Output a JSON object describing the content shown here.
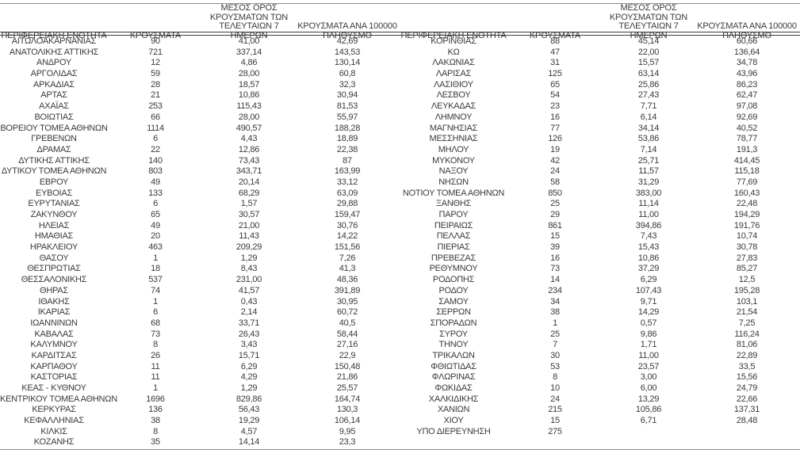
{
  "colors": {
    "text": "#3a3a3a",
    "rule": "#8c8c8c",
    "header_rule": "#3f3f3f",
    "background": "#ffffff"
  },
  "columns": [
    "ΠΕΡΙΦΕΡΕΙΑΚΗ ΕΝΟΤΗΤΑ",
    "ΚΡΟΥΣΜΑΤΑ",
    "ΜΕΣΟΣ ΟΡΟΣ\nΚΡΟΥΣΜΑΤΩΝ ΤΩΝ\nΤΕΛΕΥΤΑΙΩΝ 7 ΗΜΕΡΩΝ",
    "ΚΡΟΥΣΜΑΤΑ ΑΝΑ 100000\nΠΛΗΘΥΣΜΟ"
  ],
  "left_table": {
    "rows": [
      [
        "ΑΙΤΩΛΟΑΚΑΡΝΑΝΙΑΣ",
        "90",
        "41,00",
        "42,69"
      ],
      [
        "ΑΝΑΤΟΛΙΚΗΣ ΑΤΤΙΚΗΣ",
        "721",
        "337,14",
        "143,53"
      ],
      [
        "ΑΝΔΡΟΥ",
        "12",
        "4,86",
        "130,14"
      ],
      [
        "ΑΡΓΟΛΙΔΑΣ",
        "59",
        "28,00",
        "60,8"
      ],
      [
        "ΑΡΚΑΔΙΑΣ",
        "28",
        "18,57",
        "32,3"
      ],
      [
        "ΑΡΤΑΣ",
        "21",
        "10,86",
        "30,94"
      ],
      [
        "ΑΧΑΪΑΣ",
        "253",
        "115,43",
        "81,53"
      ],
      [
        "ΒΟΙΩΤΙΑΣ",
        "66",
        "28,00",
        "55,97"
      ],
      [
        "ΒΟΡΕΙΟΥ ΤΟΜΕΑ ΑΘΗΝΩΝ",
        "1114",
        "490,57",
        "188,28"
      ],
      [
        "ΓΡΕΒΕΝΩΝ",
        "6",
        "4,43",
        "18,89"
      ],
      [
        "ΔΡΑΜΑΣ",
        "22",
        "12,86",
        "22,38"
      ],
      [
        "ΔΥΤΙΚΗΣ ΑΤΤΙΚΗΣ",
        "140",
        "73,43",
        "87"
      ],
      [
        "ΔΥΤΙΚΟΥ ΤΟΜΕΑ ΑΘΗΝΩΝ",
        "803",
        "343,71",
        "163,99"
      ],
      [
        "ΕΒΡΟΥ",
        "49",
        "20,14",
        "33,12"
      ],
      [
        "ΕΥΒΟΙΑΣ",
        "133",
        "68,29",
        "63,09"
      ],
      [
        "ΕΥΡΥΤΑΝΙΑΣ",
        "6",
        "1,57",
        "29,88"
      ],
      [
        "ΖΑΚΥΝΘΟΥ",
        "65",
        "30,57",
        "159,47"
      ],
      [
        "ΗΛΕΙΑΣ",
        "49",
        "21,00",
        "30,76"
      ],
      [
        "ΗΜΑΘΙΑΣ",
        "20",
        "11,43",
        "14,22"
      ],
      [
        "ΗΡΑΚΛΕΙΟΥ",
        "463",
        "209,29",
        "151,56"
      ],
      [
        "ΘΑΣΟΥ",
        "1",
        "1,29",
        "7,26"
      ],
      [
        "ΘΕΣΠΡΩΤΙΑΣ",
        "18",
        "8,43",
        "41,3"
      ],
      [
        "ΘΕΣΣΑΛΟΝΙΚΗΣ",
        "537",
        "231,00",
        "48,36"
      ],
      [
        "ΘΗΡΑΣ",
        "74",
        "41,57",
        "391,89"
      ],
      [
        "ΙΘΑΚΗΣ",
        "1",
        "0,43",
        "30,95"
      ],
      [
        "ΙΚΑΡΙΑΣ",
        "6",
        "2,14",
        "60,72"
      ],
      [
        "ΙΩΑΝΝΙΝΩΝ",
        "68",
        "33,71",
        "40,5"
      ],
      [
        "ΚΑΒΑΛΑΣ",
        "73",
        "26,43",
        "58,44"
      ],
      [
        "ΚΑΛΥΜΝΟΥ",
        "8",
        "3,43",
        "27,16"
      ],
      [
        "ΚΑΡΔΙΤΣΑΣ",
        "26",
        "15,71",
        "22,9"
      ],
      [
        "ΚΑΡΠΑΘΟΥ",
        "11",
        "6,29",
        "150,48"
      ],
      [
        "ΚΑΣΤΟΡΙΑΣ",
        "11",
        "4,29",
        "21,86"
      ],
      [
        "ΚΕΑΣ - ΚΥΘΝΟΥ",
        "1",
        "1,29",
        "25,57"
      ],
      [
        "ΚΕΝΤΡΙΚΟΥ ΤΟΜΕΑ ΑΘΗΝΩΝ",
        "1696",
        "829,86",
        "164,74"
      ],
      [
        "ΚΕΡΚΥΡΑΣ",
        "136",
        "56,43",
        "130,3"
      ],
      [
        "ΚΕΦΑΛΛΗΝΙΑΣ",
        "38",
        "19,29",
        "106,14"
      ],
      [
        "ΚΙΛΚΙΣ",
        "8",
        "4,57",
        "9,95"
      ],
      [
        "ΚΟΖΑΝΗΣ",
        "35",
        "14,14",
        "23,3"
      ]
    ]
  },
  "right_table": {
    "rows": [
      [
        "ΚΟΡΙΝΘΙΑΣ",
        "88",
        "45,14",
        "60,66"
      ],
      [
        "ΚΩ",
        "47",
        "22,00",
        "136,64"
      ],
      [
        "ΛΑΚΩΝΙΑΣ",
        "31",
        "15,57",
        "34,78"
      ],
      [
        "ΛΑΡΙΣΑΣ",
        "125",
        "63,14",
        "43,96"
      ],
      [
        "ΛΑΣΙΘΙΟΥ",
        "65",
        "25,86",
        "86,23"
      ],
      [
        "ΛΕΣΒΟΥ",
        "54",
        "27,43",
        "62,47"
      ],
      [
        "ΛΕΥΚΑΔΑΣ",
        "23",
        "7,71",
        "97,08"
      ],
      [
        "ΛΗΜΝΟΥ",
        "16",
        "6,14",
        "92,69"
      ],
      [
        "ΜΑΓΝΗΣΙΑΣ",
        "77",
        "34,14",
        "40,52"
      ],
      [
        "ΜΕΣΣΗΝΙΑΣ",
        "126",
        "53,86",
        "78,77"
      ],
      [
        "ΜΗΛΟΥ",
        "19",
        "7,14",
        "191,3"
      ],
      [
        "ΜΥΚΟΝΟΥ",
        "42",
        "25,71",
        "414,45"
      ],
      [
        "ΝΑΞΟΥ",
        "24",
        "11,57",
        "115,18"
      ],
      [
        "ΝΗΣΩΝ",
        "58",
        "31,29",
        "77,69"
      ],
      [
        "ΝΟΤΙΟΥ ΤΟΜΕΑ ΑΘΗΝΩΝ",
        "850",
        "383,00",
        "160,43"
      ],
      [
        "ΞΑΝΘΗΣ",
        "25",
        "11,14",
        "22,48"
      ],
      [
        "ΠΑΡΟΥ",
        "29",
        "11,00",
        "194,29"
      ],
      [
        "ΠΕΙΡΑΙΩΣ",
        "861",
        "394,86",
        "191,76"
      ],
      [
        "ΠΕΛΛΑΣ",
        "15",
        "7,43",
        "10,74"
      ],
      [
        "ΠΙΕΡΙΑΣ",
        "39",
        "15,43",
        "30,78"
      ],
      [
        "ΠΡΕΒΕΖΑΣ",
        "16",
        "10,86",
        "27,83"
      ],
      [
        "ΡΕΘΥΜΝΟΥ",
        "73",
        "37,29",
        "85,27"
      ],
      [
        "ΡΟΔΟΠΗΣ",
        "14",
        "6,29",
        "12,5"
      ],
      [
        "ΡΟΔΟΥ",
        "234",
        "107,43",
        "195,28"
      ],
      [
        "ΣΑΜΟΥ",
        "34",
        "9,71",
        "103,1"
      ],
      [
        "ΣΕΡΡΩΝ",
        "38",
        "14,29",
        "21,54"
      ],
      [
        "ΣΠΟΡΑΔΩΝ",
        "1",
        "0,57",
        "7,25"
      ],
      [
        "ΣΥΡΟΥ",
        "25",
        "9,86",
        "116,24"
      ],
      [
        "ΤΗΝΟΥ",
        "7",
        "1,71",
        "81,06"
      ],
      [
        "ΤΡΙΚΑΛΩΝ",
        "30",
        "11,00",
        "22,89"
      ],
      [
        "ΦΘΙΩΤΙΔΑΣ",
        "53",
        "23,57",
        "33,5"
      ],
      [
        "ΦΛΩΡΙΝΑΣ",
        "8",
        "3,00",
        "15,56"
      ],
      [
        "ΦΩΚΙΔΑΣ",
        "10",
        "6,00",
        "24,79"
      ],
      [
        "ΧΑΛΚΙΔΙΚΗΣ",
        "24",
        "13,29",
        "22,66"
      ],
      [
        "ΧΑΝΙΩΝ",
        "215",
        "105,86",
        "137,31"
      ],
      [
        "ΧΙΟΥ",
        "15",
        "6,71",
        "28,48"
      ],
      [
        "ΥΠΟ ΔΙΕΡΕΥΝΗΣΗ",
        "275",
        "",
        ""
      ]
    ]
  }
}
